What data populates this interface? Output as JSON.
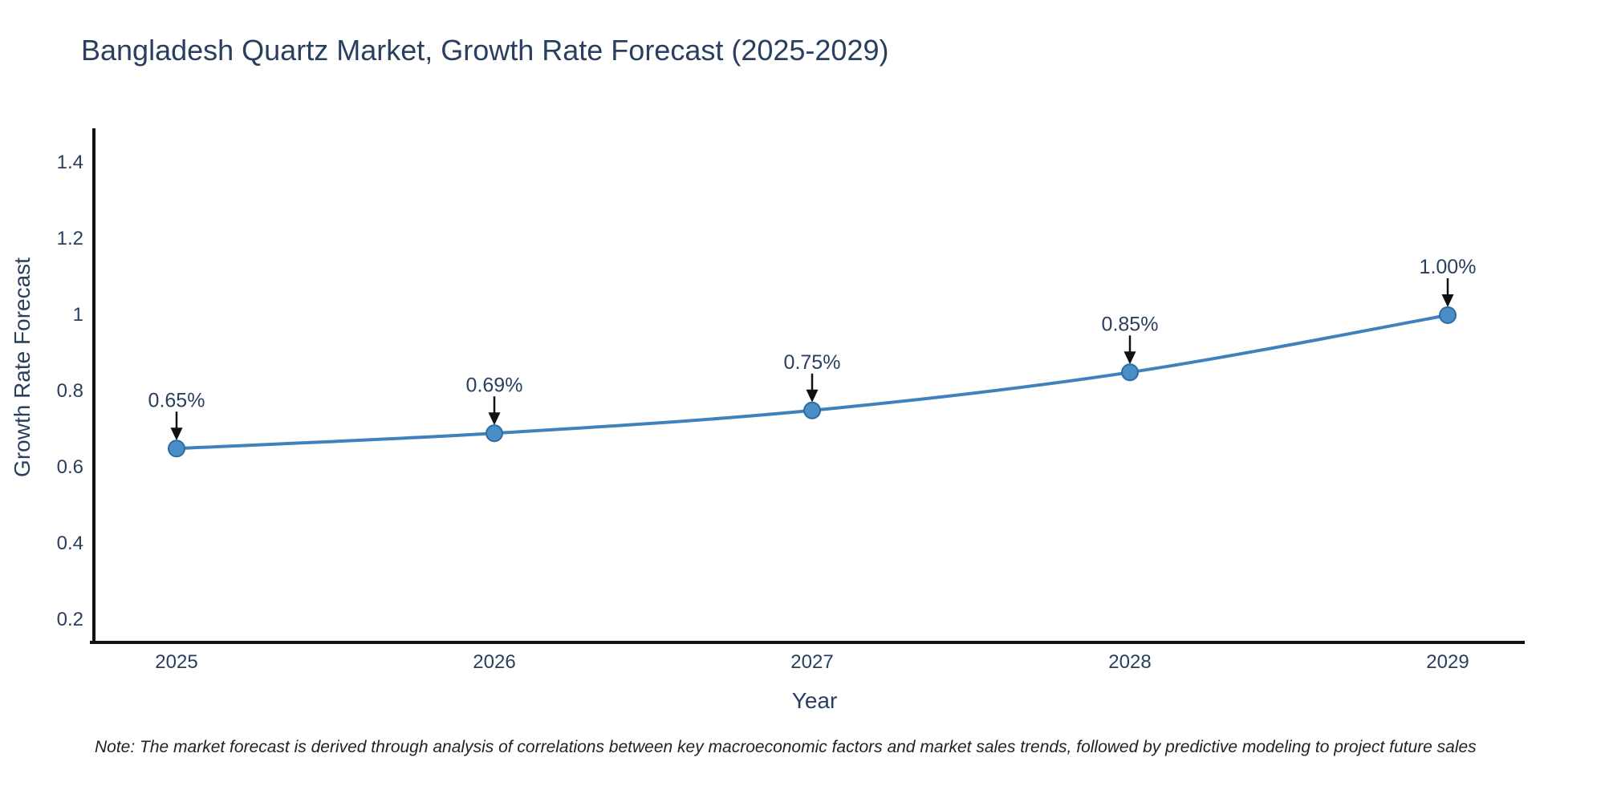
{
  "page": {
    "background": "#ffffff"
  },
  "chart_data": {
    "type": "line",
    "title": "Bangladesh Quartz Market, Growth Rate Forecast (2025-2029)",
    "xlabel": "Year",
    "ylabel": "Growth Rate Forecast",
    "x": [
      "2025",
      "2026",
      "2027",
      "2028",
      "2029"
    ],
    "series": [
      {
        "name": "Growth Rate Forecast",
        "values": [
          0.65,
          0.69,
          0.75,
          0.85,
          1.0
        ]
      }
    ],
    "point_labels": [
      "0.65%",
      "0.69%",
      "0.75%",
      "0.85%",
      "1.00%"
    ],
    "yticks": [
      1.4,
      1.2,
      1.0,
      0.8,
      0.6,
      0.4,
      0.2
    ],
    "ytick_labels": [
      "1.4",
      "1.2",
      "1",
      "0.8",
      "0.6",
      "0.4",
      "0.2"
    ],
    "ylim": [
      0.14,
      1.49
    ],
    "grid": false,
    "legend": "none",
    "colors": {
      "line": "#3f81bd",
      "marker_fill": "#4a8ec8",
      "marker_edge": "#2c6ba3",
      "arrow": "#111111",
      "axis": "#111111",
      "text": "#2a3f5f"
    }
  },
  "note": {
    "text": "Note: The market forecast is derived through analysis of correlations between key macroeconomic factors and market sales trends, followed by predictive modeling to project future sales"
  }
}
